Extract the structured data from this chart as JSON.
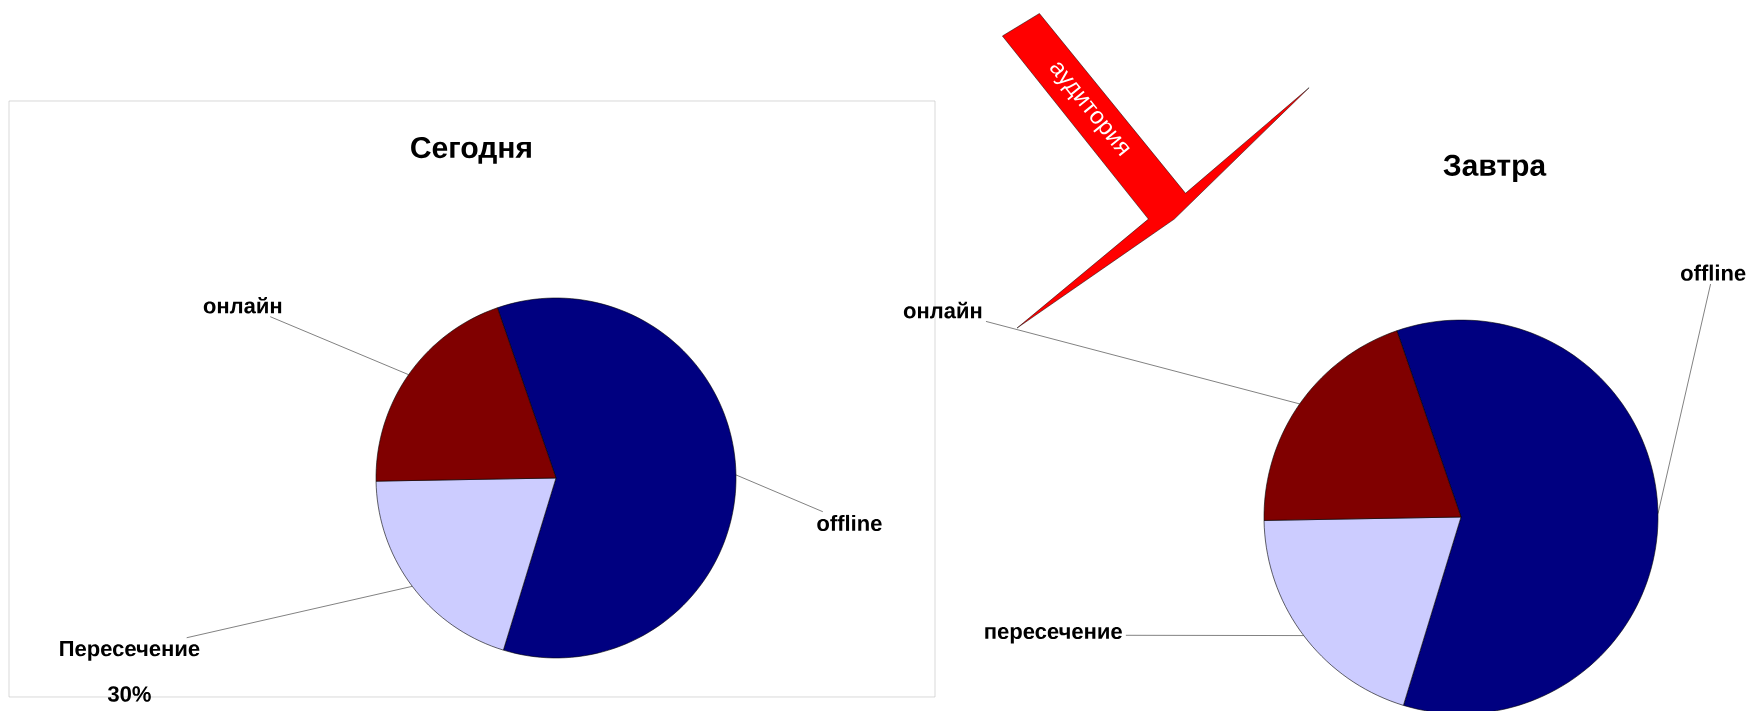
{
  "chart_data": [
    {
      "type": "pie",
      "title": "Сегодня",
      "categories": [
        "offline",
        "Пересечение",
        "онлайн"
      ],
      "values": [
        60,
        20,
        20
      ],
      "colors": [
        "#000080",
        "#ccccff",
        "#800000"
      ],
      "annotations": [
        "30%"
      ]
    },
    {
      "type": "pie",
      "title": "Завтра",
      "categories": [
        "offline",
        "пересечение",
        "онлайн"
      ],
      "values": [
        60,
        20,
        20
      ],
      "colors": [
        "#000080",
        "#ccccff",
        "#800000"
      ],
      "annotations": [
        "аудитория"
      ]
    }
  ]
}
